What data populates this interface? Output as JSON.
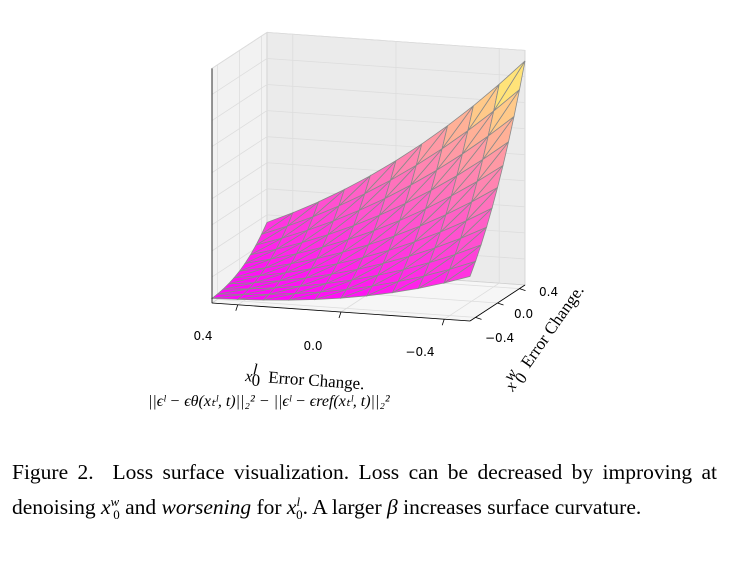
{
  "figure": {
    "xaxis": {
      "label_var": "x",
      "label_sup": "l",
      "label_sub": "0",
      "label_text": "Error Change.",
      "subtitle": "||ϵˡ − ϵθ(xₜˡ, t)||₂² − ||ϵˡ − ϵref(xₜˡ, t)||₂²",
      "ticks": [
        "0.4",
        "0.0",
        "−0.4"
      ]
    },
    "yaxis": {
      "label_var": "x",
      "label_sup": "w",
      "label_sub": "0",
      "label_text": "Error Change.",
      "ticks": [
        "0.4",
        "0.0",
        "−0.4"
      ]
    }
  },
  "chart_data": {
    "type": "surface",
    "title": "",
    "xlabel": "x0^l Error Change. ||e^l - e_theta(x_t^l,t)||_2^2 - ||e^l - e_ref(x_t^l,t)||_2^2",
    "ylabel": "x0^w Error Change.",
    "zlabel": "",
    "xlim": [
      -0.5,
      0.5
    ],
    "ylim": [
      -0.5,
      0.5
    ],
    "x_ticks": [
      0.4,
      0.0,
      -0.4
    ],
    "y_ticks": [
      0.4,
      0.0,
      -0.4
    ],
    "grid_size": 11,
    "description": "loss surface, low at x0^l=+0.5 / x0^w=-0.5, highest at x0^l=-0.5 / x0^w=+0.5",
    "colormap": [
      "#ff00ff",
      "#ffff66"
    ],
    "z_min": 0.0,
    "z_max": 1.0
  },
  "caption": {
    "label": "Figure 2.",
    "text1": "Loss surface visualization. Loss can be decreased by improving at denoising ",
    "xw": "x",
    "xw_sup": "w",
    "xw_sub": "0",
    "text2": " and ",
    "emph": "worsening",
    "text3": " for ",
    "xl": "x",
    "xl_sup": "l",
    "xl_sub": "0",
    "text4": ". A larger ",
    "beta": "β",
    "text5": " increases surface curvature."
  }
}
